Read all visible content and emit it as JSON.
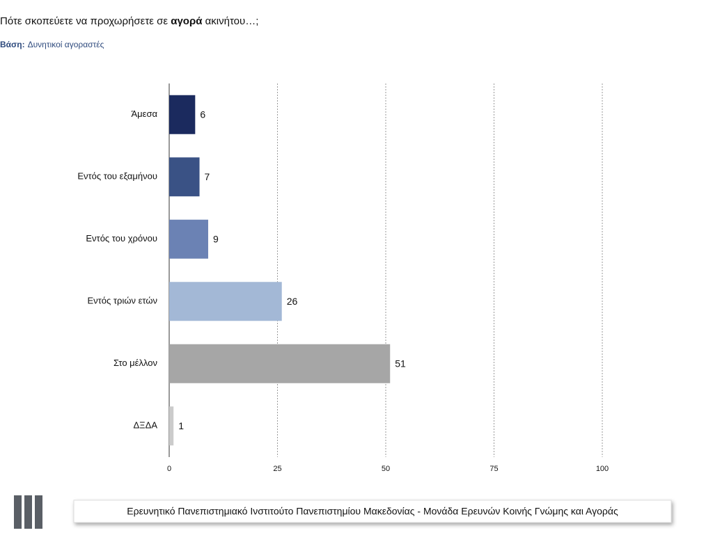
{
  "chart_data": {
    "type": "barh",
    "title": [
      "Πότε σκοπεύετε να προχωρήσετε σε ",
      "αγορά",
      " ακινήτου…;"
    ],
    "subtitle": [
      "Βάση:",
      "Δυνητικοί αγοραστές"
    ],
    "categories": [
      "Άμεσα",
      "Εντός του εξαμήνου",
      "Εντός του χρόνου",
      "Εντός τριών ετών",
      "Στο μέλλον",
      "ΔΞΔΑ"
    ],
    "values": [
      6,
      7,
      9,
      26,
      51,
      1
    ],
    "colors": [
      "#1b2a5e",
      "#3a5285",
      "#6b82b4",
      "#a3b8d6",
      "#a6a6a6",
      "#cbcbcb"
    ],
    "xlim": [
      0,
      100
    ],
    "xticks": [
      0,
      25,
      50,
      75,
      100
    ],
    "grid": true
  },
  "footer": "Ερευνητικό Πανεπιστημιακό Ινστιτούτο Πανεπιστημίου Μακεδονίας - Μονάδα Ερευνών Κοινής Γνώμης και Αγοράς"
}
